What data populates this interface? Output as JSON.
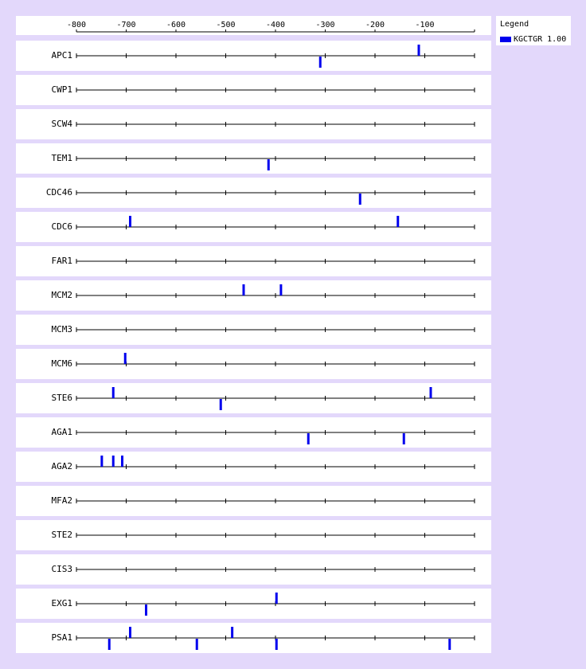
{
  "legend": {
    "title": "Legend",
    "entries": [
      {
        "label": "KGCTGR 1.00",
        "color": "#0000ee"
      }
    ]
  },
  "chart_data": {
    "type": "scatter",
    "xlim": [
      -800,
      0
    ],
    "x_ticks": [
      -800,
      -700,
      -600,
      -500,
      -400,
      -300,
      -200,
      -100
    ],
    "tick_labels": [
      "-800",
      "-700",
      "-600",
      "-500",
      "-400",
      "-300",
      "-200",
      "-100"
    ],
    "mark_color": "#0000ee",
    "genes": [
      {
        "name": "APC1",
        "sites": [
          {
            "x": -310,
            "strand": "-"
          },
          {
            "x": -112,
            "strand": "+"
          }
        ]
      },
      {
        "name": "CWP1",
        "sites": []
      },
      {
        "name": "SCW4",
        "sites": []
      },
      {
        "name": "TEM1",
        "sites": [
          {
            "x": -414,
            "strand": "-"
          }
        ]
      },
      {
        "name": "CDC46",
        "sites": [
          {
            "x": -230,
            "strand": "-"
          }
        ]
      },
      {
        "name": "CDC6",
        "sites": [
          {
            "x": -692,
            "strand": "+"
          },
          {
            "x": -154,
            "strand": "+"
          }
        ]
      },
      {
        "name": "FAR1",
        "sites": []
      },
      {
        "name": "MCM2",
        "sites": [
          {
            "x": -464,
            "strand": "+"
          },
          {
            "x": -389,
            "strand": "+"
          }
        ]
      },
      {
        "name": "MCM3",
        "sites": []
      },
      {
        "name": "MCM6",
        "sites": [
          {
            "x": -702,
            "strand": "+"
          }
        ]
      },
      {
        "name": "STE6",
        "sites": [
          {
            "x": -726,
            "strand": "+"
          },
          {
            "x": -510,
            "strand": "-"
          },
          {
            "x": -88,
            "strand": "+"
          }
        ]
      },
      {
        "name": "AGA1",
        "sites": [
          {
            "x": -334,
            "strand": "-"
          },
          {
            "x": -142,
            "strand": "-"
          }
        ]
      },
      {
        "name": "AGA2",
        "sites": [
          {
            "x": -749,
            "strand": "+"
          },
          {
            "x": -726,
            "strand": "+"
          },
          {
            "x": -708,
            "strand": "+"
          }
        ]
      },
      {
        "name": "MFA2",
        "sites": []
      },
      {
        "name": "STE2",
        "sites": []
      },
      {
        "name": "CIS3",
        "sites": []
      },
      {
        "name": "EXG1",
        "sites": [
          {
            "x": -398,
            "strand": "+"
          },
          {
            "x": -660,
            "strand": "-"
          }
        ]
      },
      {
        "name": "PSA1",
        "sites": [
          {
            "x": -734,
            "strand": "-"
          },
          {
            "x": -692,
            "strand": "+"
          },
          {
            "x": -558,
            "strand": "-"
          },
          {
            "x": -487,
            "strand": "+"
          },
          {
            "x": -398,
            "strand": "-"
          },
          {
            "x": -50,
            "strand": "-"
          }
        ]
      }
    ]
  }
}
